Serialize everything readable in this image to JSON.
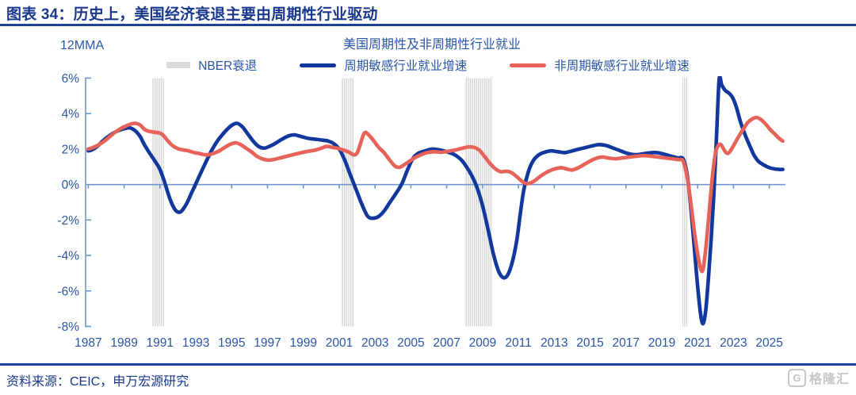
{
  "header": {
    "title": "图表 34：历史上，美国经济衰退主要由周期性行业驱动"
  },
  "footer": {
    "source": "资料来源：CEIC，申万宏源研究",
    "watermark": "格隆汇",
    "watermark_icon": "G"
  },
  "colors": {
    "header_blue": "#19378b",
    "label_blue": "#2a55a8",
    "axis_blue": "#7096cc",
    "cyclical_line": "#12389d",
    "noncyclical_line": "#e76258",
    "recession_band": "#d2d2d2",
    "nber_swatch": "#d9d9d9"
  },
  "chart_data": {
    "type": "line",
    "title": "美国周期性及非周期性行业就业",
    "y_axis_unit_label": "12MMA",
    "grid": false,
    "legend_position": "top",
    "x_range": [
      1986.85,
      2025.9
    ],
    "y_range": [
      -8,
      6
    ],
    "y_ticks": {
      "labels": [
        "6%",
        "4%",
        "2%",
        "0%",
        "-2%",
        "-4%",
        "-6%",
        "-8%"
      ],
      "values": [
        6,
        4,
        2,
        0,
        -2,
        -4,
        -6,
        -8
      ]
    },
    "x_ticks": {
      "labels": [
        "1987",
        "1989",
        "1991",
        "1993",
        "1995",
        "1997",
        "1999",
        "2001",
        "2003",
        "2005",
        "2007",
        "2009",
        "2011",
        "2013",
        "2015",
        "2017",
        "2019",
        "2021",
        "2023",
        "2025"
      ],
      "values": [
        1987,
        1989,
        1991,
        1993,
        1995,
        1997,
        1999,
        2001,
        2003,
        2005,
        2007,
        2009,
        2011,
        2013,
        2015,
        2017,
        2019,
        2021,
        2023,
        2025
      ]
    },
    "legend": [
      {
        "label": "NBER衰退",
        "type": "band",
        "color": "#d9d9d9"
      },
      {
        "label": "周期敏感行业就业增速",
        "type": "line",
        "color": "#12389d"
      },
      {
        "label": "非周期敏感行业就业增速",
        "type": "line",
        "color": "#e76258"
      }
    ],
    "recession_bands": [
      [
        1990.55,
        1991.25
      ],
      [
        2001.1,
        2001.8
      ],
      [
        2008.0,
        2009.55
      ],
      [
        2020.15,
        2020.42
      ]
    ],
    "series": [
      {
        "name": "周期敏感行业就业增速",
        "color": "#12389d",
        "points": [
          [
            1987.0,
            1.9
          ],
          [
            1987.2,
            1.95
          ],
          [
            1987.5,
            2.15
          ],
          [
            1987.8,
            2.45
          ],
          [
            1988.1,
            2.7
          ],
          [
            1988.4,
            2.9
          ],
          [
            1988.7,
            3.05
          ],
          [
            1989.0,
            3.15
          ],
          [
            1989.3,
            3.2
          ],
          [
            1989.6,
            3.05
          ],
          [
            1989.9,
            2.7
          ],
          [
            1990.1,
            2.3
          ],
          [
            1990.4,
            1.8
          ],
          [
            1990.7,
            1.35
          ],
          [
            1991.0,
            0.85
          ],
          [
            1991.3,
            0.0
          ],
          [
            1991.55,
            -0.8
          ],
          [
            1991.8,
            -1.35
          ],
          [
            1992.0,
            -1.55
          ],
          [
            1992.2,
            -1.5
          ],
          [
            1992.5,
            -1.05
          ],
          [
            1992.75,
            -0.5
          ],
          [
            1993.0,
            0.05
          ],
          [
            1993.3,
            0.7
          ],
          [
            1993.6,
            1.35
          ],
          [
            1993.9,
            1.95
          ],
          [
            1994.2,
            2.45
          ],
          [
            1994.6,
            2.95
          ],
          [
            1994.95,
            3.3
          ],
          [
            1995.3,
            3.45
          ],
          [
            1995.6,
            3.25
          ],
          [
            1995.9,
            2.85
          ],
          [
            1996.2,
            2.45
          ],
          [
            1996.5,
            2.15
          ],
          [
            1996.8,
            2.05
          ],
          [
            1997.1,
            2.15
          ],
          [
            1997.4,
            2.3
          ],
          [
            1997.8,
            2.55
          ],
          [
            1998.2,
            2.75
          ],
          [
            1998.5,
            2.8
          ],
          [
            1998.9,
            2.7
          ],
          [
            1999.3,
            2.6
          ],
          [
            1999.7,
            2.55
          ],
          [
            2000.1,
            2.5
          ],
          [
            2000.4,
            2.45
          ],
          [
            2000.7,
            2.3
          ],
          [
            2001.0,
            2.0
          ],
          [
            2001.3,
            1.4
          ],
          [
            2001.6,
            0.6
          ],
          [
            2001.95,
            -0.3
          ],
          [
            2002.3,
            -1.2
          ],
          [
            2002.6,
            -1.8
          ],
          [
            2002.9,
            -1.9
          ],
          [
            2003.2,
            -1.8
          ],
          [
            2003.5,
            -1.5
          ],
          [
            2003.8,
            -1.05
          ],
          [
            2004.1,
            -0.6
          ],
          [
            2004.5,
            0.05
          ],
          [
            2004.8,
            0.8
          ],
          [
            2005.1,
            1.45
          ],
          [
            2005.4,
            1.75
          ],
          [
            2005.8,
            1.9
          ],
          [
            2006.2,
            2.0
          ],
          [
            2006.6,
            1.95
          ],
          [
            2007.0,
            1.85
          ],
          [
            2007.4,
            1.7
          ],
          [
            2007.8,
            1.4
          ],
          [
            2008.1,
            1.0
          ],
          [
            2008.4,
            0.5
          ],
          [
            2008.7,
            -0.2
          ],
          [
            2009.0,
            -1.2
          ],
          [
            2009.3,
            -2.5
          ],
          [
            2009.6,
            -3.9
          ],
          [
            2009.9,
            -4.9
          ],
          [
            2010.15,
            -5.25
          ],
          [
            2010.4,
            -5.1
          ],
          [
            2010.65,
            -4.4
          ],
          [
            2010.9,
            -3.2
          ],
          [
            2011.1,
            -1.7
          ],
          [
            2011.3,
            -0.3
          ],
          [
            2011.55,
            0.7
          ],
          [
            2011.8,
            1.3
          ],
          [
            2012.1,
            1.65
          ],
          [
            2012.4,
            1.8
          ],
          [
            2012.8,
            1.9
          ],
          [
            2013.2,
            1.85
          ],
          [
            2013.6,
            1.8
          ],
          [
            2014.0,
            1.9
          ],
          [
            2014.4,
            2.0
          ],
          [
            2014.8,
            2.1
          ],
          [
            2015.2,
            2.2
          ],
          [
            2015.5,
            2.25
          ],
          [
            2015.9,
            2.2
          ],
          [
            2016.3,
            2.05
          ],
          [
            2016.7,
            1.9
          ],
          [
            2017.1,
            1.75
          ],
          [
            2017.5,
            1.68
          ],
          [
            2017.9,
            1.72
          ],
          [
            2018.3,
            1.78
          ],
          [
            2018.7,
            1.8
          ],
          [
            2019.1,
            1.72
          ],
          [
            2019.5,
            1.6
          ],
          [
            2019.9,
            1.5
          ],
          [
            2020.2,
            1.42
          ],
          [
            2020.45,
            0.3
          ],
          [
            2020.7,
            -2.2
          ],
          [
            2020.95,
            -5.2
          ],
          [
            2021.15,
            -7.2
          ],
          [
            2021.3,
            -7.85
          ],
          [
            2021.45,
            -7.1
          ],
          [
            2021.6,
            -5.3
          ],
          [
            2021.75,
            -3.1
          ],
          [
            2021.9,
            -0.6
          ],
          [
            2022.05,
            2.6
          ],
          [
            2022.2,
            5.9
          ],
          [
            2022.35,
            5.6
          ],
          [
            2022.55,
            5.3
          ],
          [
            2022.75,
            5.15
          ],
          [
            2022.95,
            4.9
          ],
          [
            2023.15,
            4.4
          ],
          [
            2023.4,
            3.5
          ],
          [
            2023.65,
            2.8
          ],
          [
            2023.9,
            2.2
          ],
          [
            2024.15,
            1.65
          ],
          [
            2024.4,
            1.3
          ],
          [
            2024.7,
            1.1
          ],
          [
            2025.0,
            0.95
          ],
          [
            2025.3,
            0.88
          ],
          [
            2025.55,
            0.85
          ],
          [
            2025.75,
            0.85
          ]
        ]
      },
      {
        "name": "非周期敏感行业就业增速",
        "color": "#e76258",
        "points": [
          [
            1987.0,
            2.0
          ],
          [
            1987.3,
            2.1
          ],
          [
            1987.6,
            2.25
          ],
          [
            1987.9,
            2.45
          ],
          [
            1988.2,
            2.7
          ],
          [
            1988.5,
            2.95
          ],
          [
            1988.8,
            3.15
          ],
          [
            1989.1,
            3.3
          ],
          [
            1989.4,
            3.42
          ],
          [
            1989.65,
            3.45
          ],
          [
            1989.9,
            3.35
          ],
          [
            1990.15,
            3.1
          ],
          [
            1990.4,
            3.0
          ],
          [
            1990.7,
            2.95
          ],
          [
            1991.0,
            2.9
          ],
          [
            1991.2,
            2.75
          ],
          [
            1991.45,
            2.45
          ],
          [
            1991.7,
            2.2
          ],
          [
            1992.0,
            2.02
          ],
          [
            1992.3,
            1.95
          ],
          [
            1992.6,
            1.9
          ],
          [
            1992.9,
            1.8
          ],
          [
            1993.2,
            1.75
          ],
          [
            1993.5,
            1.68
          ],
          [
            1993.8,
            1.7
          ],
          [
            1994.1,
            1.8
          ],
          [
            1994.4,
            1.95
          ],
          [
            1994.7,
            2.15
          ],
          [
            1995.0,
            2.3
          ],
          [
            1995.25,
            2.35
          ],
          [
            1995.5,
            2.25
          ],
          [
            1995.8,
            2.05
          ],
          [
            1996.1,
            1.85
          ],
          [
            1996.4,
            1.6
          ],
          [
            1996.7,
            1.45
          ],
          [
            1997.0,
            1.38
          ],
          [
            1997.3,
            1.4
          ],
          [
            1997.7,
            1.5
          ],
          [
            1998.1,
            1.6
          ],
          [
            1998.5,
            1.7
          ],
          [
            1998.9,
            1.8
          ],
          [
            1999.3,
            1.88
          ],
          [
            1999.7,
            1.95
          ],
          [
            2000.0,
            2.05
          ],
          [
            2000.3,
            2.15
          ],
          [
            2000.6,
            2.1
          ],
          [
            2000.9,
            2.05
          ],
          [
            2001.2,
            1.95
          ],
          [
            2001.5,
            1.85
          ],
          [
            2001.8,
            1.68
          ],
          [
            2002.0,
            1.78
          ],
          [
            2002.2,
            2.35
          ],
          [
            2002.4,
            2.9
          ],
          [
            2002.6,
            2.85
          ],
          [
            2002.9,
            2.5
          ],
          [
            2003.2,
            2.1
          ],
          [
            2003.5,
            1.8
          ],
          [
            2003.8,
            1.4
          ],
          [
            2004.1,
            1.05
          ],
          [
            2004.35,
            0.97
          ],
          [
            2004.6,
            1.1
          ],
          [
            2004.9,
            1.3
          ],
          [
            2005.2,
            1.5
          ],
          [
            2005.5,
            1.65
          ],
          [
            2005.9,
            1.8
          ],
          [
            2006.3,
            1.85
          ],
          [
            2006.7,
            1.82
          ],
          [
            2007.1,
            1.88
          ],
          [
            2007.5,
            1.95
          ],
          [
            2007.9,
            2.05
          ],
          [
            2008.2,
            2.12
          ],
          [
            2008.5,
            2.1
          ],
          [
            2008.8,
            1.95
          ],
          [
            2009.1,
            1.6
          ],
          [
            2009.4,
            1.2
          ],
          [
            2009.7,
            0.9
          ],
          [
            2010.0,
            0.72
          ],
          [
            2010.3,
            0.75
          ],
          [
            2010.6,
            0.68
          ],
          [
            2010.9,
            0.45
          ],
          [
            2011.2,
            0.18
          ],
          [
            2011.45,
            0.05
          ],
          [
            2011.7,
            0.1
          ],
          [
            2011.95,
            0.25
          ],
          [
            2012.2,
            0.45
          ],
          [
            2012.5,
            0.65
          ],
          [
            2012.8,
            0.8
          ],
          [
            2013.1,
            0.9
          ],
          [
            2013.4,
            0.95
          ],
          [
            2013.7,
            0.88
          ],
          [
            2014.0,
            0.82
          ],
          [
            2014.35,
            0.95
          ],
          [
            2014.7,
            1.15
          ],
          [
            2015.05,
            1.35
          ],
          [
            2015.4,
            1.5
          ],
          [
            2015.7,
            1.55
          ],
          [
            2016.0,
            1.5
          ],
          [
            2016.4,
            1.45
          ],
          [
            2016.8,
            1.5
          ],
          [
            2017.2,
            1.55
          ],
          [
            2017.6,
            1.6
          ],
          [
            2018.0,
            1.63
          ],
          [
            2018.4,
            1.6
          ],
          [
            2018.8,
            1.55
          ],
          [
            2019.2,
            1.5
          ],
          [
            2019.6,
            1.45
          ],
          [
            2019.95,
            1.4
          ],
          [
            2020.2,
            1.3
          ],
          [
            2020.45,
            0.2
          ],
          [
            2020.65,
            -1.3
          ],
          [
            2020.85,
            -2.9
          ],
          [
            2021.05,
            -4.2
          ],
          [
            2021.25,
            -4.9
          ],
          [
            2021.4,
            -4.1
          ],
          [
            2021.55,
            -2.6
          ],
          [
            2021.7,
            -0.9
          ],
          [
            2021.85,
            0.7
          ],
          [
            2022.0,
            1.8
          ],
          [
            2022.15,
            2.2
          ],
          [
            2022.3,
            2.25
          ],
          [
            2022.45,
            2.0
          ],
          [
            2022.6,
            1.78
          ],
          [
            2022.75,
            1.8
          ],
          [
            2022.95,
            2.1
          ],
          [
            2023.2,
            2.55
          ],
          [
            2023.5,
            3.05
          ],
          [
            2023.8,
            3.5
          ],
          [
            2024.05,
            3.7
          ],
          [
            2024.3,
            3.78
          ],
          [
            2024.55,
            3.65
          ],
          [
            2024.8,
            3.4
          ],
          [
            2025.05,
            3.1
          ],
          [
            2025.3,
            2.85
          ],
          [
            2025.55,
            2.6
          ],
          [
            2025.75,
            2.45
          ]
        ]
      }
    ]
  }
}
